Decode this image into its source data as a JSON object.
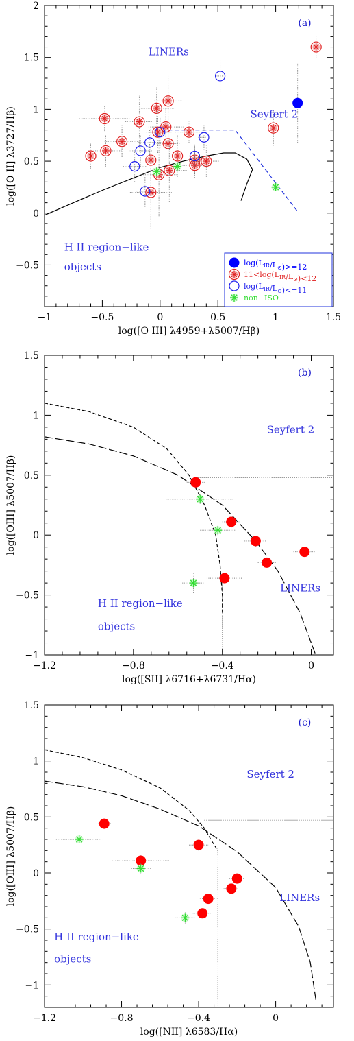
{
  "colors": {
    "ulirg": "#0000ff",
    "lirg": "#e02020",
    "lirg_fill": "#ff0000",
    "low": "#2020ee",
    "noniso": "#33dd33",
    "region_text": "#3333dd",
    "err": "#777777"
  },
  "chart_data": [
    {
      "type": "scatter",
      "panel_label": "(a)",
      "xlabel": "log([O III] λ4959+λ5007/Hβ)",
      "ylabel": "log([O II] λ3727/Hβ)",
      "xlim": [
        -1,
        1.5
      ],
      "ylim": [
        -0.9,
        2
      ],
      "xticks": [
        -1,
        -0.5,
        0,
        0.5,
        1,
        1.5
      ],
      "xticklabels": [
        "−1",
        "−0.5",
        "0",
        "0.5",
        "1",
        "1.5"
      ],
      "yticks": [
        -0.5,
        0,
        0.5,
        1,
        1.5,
        2
      ],
      "yticklabels": [
        "−0.5",
        "0",
        "0.5",
        "1",
        "1.5",
        "2"
      ],
      "regions": [
        {
          "text": "LINERs",
          "x": -0.1,
          "y": 1.52
        },
        {
          "text": "Seyfert 2",
          "x": 0.78,
          "y": 0.92
        },
        {
          "text": "H II region−like",
          "x": -0.83,
          "y": -0.36
        },
        {
          "text": "objects",
          "x": -0.83,
          "y": -0.55
        }
      ],
      "legend_position": "bottom-right",
      "legend": [
        {
          "label": "log(L_IR/L_⊙)>=12",
          "marker": "ulirg"
        },
        {
          "label": "11<log(L_IR/L_⊙)<12",
          "marker": "lirg"
        },
        {
          "label": "log(L_IR/L_⊙)<=11",
          "marker": "low"
        },
        {
          "label": "non−ISO",
          "marker": "noniso"
        }
      ],
      "lines": [
        {
          "style": "solid",
          "points": [
            [
              -1,
              -0.02
            ],
            [
              -0.75,
              0.1
            ],
            [
              -0.5,
              0.22
            ],
            [
              -0.25,
              0.33
            ],
            [
              0,
              0.44
            ],
            [
              0.2,
              0.5
            ],
            [
              0.4,
              0.55
            ],
            [
              0.55,
              0.58
            ],
            [
              0.65,
              0.58
            ],
            [
              0.75,
              0.52
            ],
            [
              0.8,
              0.42
            ],
            [
              0.75,
              0.28
            ],
            [
              0.7,
              0.12
            ]
          ]
        },
        {
          "style": "dashed",
          "points": [
            [
              -0.05,
              0.8
            ],
            [
              0.65,
              0.8
            ],
            [
              1.2,
              0.0
            ]
          ]
        }
      ],
      "series": [
        {
          "name": "log(L_IR/L_⊙)>=12",
          "marker": "ulirg",
          "points": [
            {
              "x": 1.19,
              "y": 1.06,
              "xe": 0,
              "ye": 0.38
            }
          ]
        },
        {
          "name": "11<log(L_IR/L_⊙)<12",
          "marker": "lirg",
          "points": [
            {
              "x": 1.35,
              "y": 1.6,
              "xe": 0.03,
              "ye": 0.1
            },
            {
              "x": 0.98,
              "y": 0.82,
              "xe": 0.05,
              "ye": 0.17
            },
            {
              "x": 0.07,
              "y": 1.08,
              "xe": 0.12,
              "ye": 0.25
            },
            {
              "x": -0.03,
              "y": 1.01,
              "xe": 0.15,
              "ye": 0.2
            },
            {
              "x": -0.48,
              "y": 0.91,
              "xe": 0.22,
              "ye": 0.12
            },
            {
              "x": -0.18,
              "y": 0.88,
              "xe": 0.12,
              "ye": 0.25
            },
            {
              "x": 0.05,
              "y": 0.83,
              "xe": 0.15,
              "ye": 0.18
            },
            {
              "x": -0.02,
              "y": 0.78,
              "xe": 0.1,
              "ye": 0.2
            },
            {
              "x": 0.25,
              "y": 0.78,
              "xe": 0.12,
              "ye": 0.1
            },
            {
              "x": -0.33,
              "y": 0.69,
              "xe": 0.15,
              "ye": 0.15
            },
            {
              "x": 0.07,
              "y": 0.67,
              "xe": 0.1,
              "ye": 0.22
            },
            {
              "x": -0.47,
              "y": 0.6,
              "xe": 0.15,
              "ye": 0.15
            },
            {
              "x": -0.6,
              "y": 0.55,
              "xe": 0.18,
              "ye": 0.12
            },
            {
              "x": 0.15,
              "y": 0.55,
              "xe": 0.12,
              "ye": 0.2
            },
            {
              "x": -0.08,
              "y": 0.51,
              "xe": 0.1,
              "ye": 0.3
            },
            {
              "x": 0.3,
              "y": 0.51,
              "xe": 0.1,
              "ye": 0.15
            },
            {
              "x": 0.3,
              "y": 0.46,
              "xe": 0.15,
              "ye": 0.12
            },
            {
              "x": 0.4,
              "y": 0.5,
              "xe": 0.12,
              "ye": 0.15
            },
            {
              "x": 0.08,
              "y": 0.41,
              "xe": 0.15,
              "ye": 0.3
            },
            {
              "x": -0.01,
              "y": 0.37,
              "xe": 0.15,
              "ye": 0.4
            },
            {
              "x": -0.08,
              "y": 0.2,
              "xe": 0.18,
              "ye": 0.35
            }
          ]
        },
        {
          "name": "log(L_IR/L_⊙)<=11",
          "marker": "low",
          "points": [
            {
              "x": 0.52,
              "y": 1.32,
              "xe": 0.03,
              "ye": 0.15
            },
            {
              "x": 0.0,
              "y": 0.78,
              "xe": 0.1,
              "ye": 0.15
            },
            {
              "x": 0.38,
              "y": 0.73,
              "xe": 0.05,
              "ye": 0.12
            },
            {
              "x": -0.09,
              "y": 0.68,
              "xe": 0.1,
              "ye": 0.12
            },
            {
              "x": -0.17,
              "y": 0.6,
              "xe": 0.1,
              "ye": 0.15
            },
            {
              "x": 0.3,
              "y": 0.55,
              "xe": 0.08,
              "ye": 0.1
            },
            {
              "x": -0.22,
              "y": 0.45,
              "xe": 0.1,
              "ye": 0.15
            },
            {
              "x": -0.13,
              "y": 0.21,
              "xe": 0.08,
              "ye": 0.15
            }
          ]
        },
        {
          "name": "non−ISO",
          "marker": "noniso",
          "points": [
            {
              "x": -0.03,
              "y": 0.4,
              "xe": 0,
              "ye": 0
            },
            {
              "x": 0.15,
              "y": 0.45,
              "xe": 0,
              "ye": 0
            },
            {
              "x": 1.0,
              "y": 0.25,
              "xe": 0,
              "ye": 0
            }
          ]
        }
      ]
    },
    {
      "type": "scatter",
      "panel_label": "(b)",
      "xlabel": "log([SII] λ6716+λ6731/Hα)",
      "ylabel": "log([OIII] λ5007/Hβ)",
      "xlim": [
        -1.2,
        0.1
      ],
      "ylim": [
        -1,
        1.5
      ],
      "xticks": [
        -1.2,
        -0.8,
        -0.4,
        0
      ],
      "xticklabels": [
        "−1.2",
        "−0.8",
        "−0.4",
        "0"
      ],
      "yticks": [
        -1,
        -0.5,
        0,
        0.5,
        1,
        1.5
      ],
      "yticklabels": [
        "−1",
        "−0.5",
        "0",
        "0.5",
        "1",
        "1.5"
      ],
      "regions": [
        {
          "text": "Seyfert 2",
          "x": -0.2,
          "y": 0.85
        },
        {
          "text": "LINERs",
          "x": -0.14,
          "y": -0.47
        },
        {
          "text": "H II region−like",
          "x": -0.96,
          "y": -0.6
        },
        {
          "text": "objects",
          "x": -0.96,
          "y": -0.79
        }
      ],
      "lines": [
        {
          "style": "shortdash",
          "points": [
            [
              -1.2,
              1.1
            ],
            [
              -1.0,
              1.03
            ],
            [
              -0.8,
              0.9
            ],
            [
              -0.65,
              0.72
            ],
            [
              -0.55,
              0.5
            ],
            [
              -0.48,
              0.25
            ],
            [
              -0.43,
              0.0
            ],
            [
              -0.41,
              -0.25
            ],
            [
              -0.4,
              -0.5
            ],
            [
              -0.4,
              -0.65
            ]
          ]
        },
        {
          "style": "longdash",
          "points": [
            [
              -1.2,
              0.82
            ],
            [
              -1.0,
              0.76
            ],
            [
              -0.8,
              0.66
            ],
            [
              -0.6,
              0.5
            ],
            [
              -0.4,
              0.25
            ],
            [
              -0.25,
              -0.05
            ],
            [
              -0.15,
              -0.3
            ],
            [
              -0.05,
              -0.65
            ],
            [
              0.02,
              -1.0
            ]
          ]
        },
        {
          "style": "dotted",
          "points": [
            [
              -0.52,
              0.48
            ],
            [
              0.1,
              0.48
            ]
          ]
        },
        {
          "style": "dotted",
          "points": [
            [
              -0.4,
              -0.38
            ],
            [
              -0.4,
              -1.0
            ]
          ]
        }
      ],
      "series": [
        {
          "name": "11<log(L_IR/L_⊙)<12",
          "marker": "filled",
          "points": [
            {
              "x": -0.52,
              "y": 0.44,
              "xe": 0.04,
              "ye": 0.03
            },
            {
              "x": -0.36,
              "y": 0.11,
              "xe": 0.04,
              "ye": 0.05
            },
            {
              "x": -0.25,
              "y": -0.05,
              "xe": 0.05,
              "ye": 0.05
            },
            {
              "x": -0.2,
              "y": -0.23,
              "xe": 0.04,
              "ye": 0.03
            },
            {
              "x": -0.03,
              "y": -0.14,
              "xe": 0.05,
              "ye": 0.03
            },
            {
              "x": -0.39,
              "y": -0.36,
              "xe": 0.08,
              "ye": 0.04
            }
          ]
        },
        {
          "name": "non−ISO",
          "marker": "noniso",
          "points": [
            {
              "x": -0.5,
              "y": 0.3,
              "xe": 0.15,
              "ye": 0.04
            },
            {
              "x": -0.42,
              "y": 0.04,
              "xe": 0.08,
              "ye": 0.04
            },
            {
              "x": -0.53,
              "y": -0.4,
              "xe": 0.05,
              "ye": 0.08
            }
          ]
        }
      ]
    },
    {
      "type": "scatter",
      "panel_label": "(c)",
      "xlabel": "log([NII] λ6583/Hα)",
      "ylabel": "log([OIII] λ5007/Hβ)",
      "xlim": [
        -1.2,
        0.3
      ],
      "ylim": [
        -1.2,
        1.5
      ],
      "xticks": [
        -1.2,
        -0.8,
        -0.4,
        0
      ],
      "xticklabels": [
        "−1.2",
        "−0.8",
        "−0.4",
        "0"
      ],
      "yticks": [
        -1,
        -0.5,
        0,
        0.5,
        1,
        1.5
      ],
      "yticklabels": [
        "−1",
        "−0.5",
        "0",
        "0.5",
        "1",
        "1.5"
      ],
      "regions": [
        {
          "text": "Seyfert 2",
          "x": -0.15,
          "y": 0.85
        },
        {
          "text": "LINERs",
          "x": 0.02,
          "y": -0.25
        },
        {
          "text": "H II region−like",
          "x": -1.15,
          "y": -0.6
        },
        {
          "text": "objects",
          "x": -1.15,
          "y": -0.8
        }
      ],
      "lines": [
        {
          "style": "shortdash",
          "points": [
            [
              -1.2,
              1.1
            ],
            [
              -1.0,
              1.03
            ],
            [
              -0.8,
              0.92
            ],
            [
              -0.6,
              0.76
            ],
            [
              -0.45,
              0.56
            ],
            [
              -0.37,
              0.4
            ],
            [
              -0.33,
              0.28
            ],
            [
              -0.3,
              0.2
            ]
          ]
        },
        {
          "style": "longdash",
          "points": [
            [
              -1.2,
              0.82
            ],
            [
              -1.0,
              0.77
            ],
            [
              -0.8,
              0.69
            ],
            [
              -0.6,
              0.57
            ],
            [
              -0.4,
              0.42
            ],
            [
              -0.2,
              0.19
            ],
            [
              0.0,
              -0.13
            ],
            [
              0.12,
              -0.48
            ],
            [
              0.18,
              -0.8
            ],
            [
              0.21,
              -1.15
            ]
          ]
        },
        {
          "style": "dotted",
          "points": [
            [
              -0.37,
              0.47
            ],
            [
              0.3,
              0.47
            ]
          ]
        },
        {
          "style": "dotted",
          "points": [
            [
              -0.3,
              0.22
            ],
            [
              -0.3,
              -1.2
            ]
          ]
        }
      ],
      "series": [
        {
          "name": "11<log(L_IR/L_⊙)<12",
          "marker": "filled",
          "points": [
            {
              "x": -0.89,
              "y": 0.44,
              "xe": 0.04,
              "ye": 0.03
            },
            {
              "x": -0.7,
              "y": 0.11,
              "xe": 0.15,
              "ye": 0.05
            },
            {
              "x": -0.4,
              "y": 0.25,
              "xe": 0.05,
              "ye": 0.05
            },
            {
              "x": -0.2,
              "y": -0.05,
              "xe": 0.04,
              "ye": 0.04
            },
            {
              "x": -0.23,
              "y": -0.14,
              "xe": 0.04,
              "ye": 0.04
            },
            {
              "x": -0.35,
              "y": -0.23,
              "xe": 0.05,
              "ye": 0.04
            },
            {
              "x": -0.38,
              "y": -0.36,
              "xe": 0.05,
              "ye": 0.04
            }
          ]
        },
        {
          "name": "non−ISO",
          "marker": "noniso",
          "points": [
            {
              "x": -1.02,
              "y": 0.3,
              "xe": 0.12,
              "ye": 0.03
            },
            {
              "x": -0.7,
              "y": 0.04,
              "xe": 0.05,
              "ye": 0.05
            },
            {
              "x": -0.47,
              "y": -0.4,
              "xe": 0.05,
              "ye": 0.05
            }
          ]
        }
      ]
    }
  ]
}
